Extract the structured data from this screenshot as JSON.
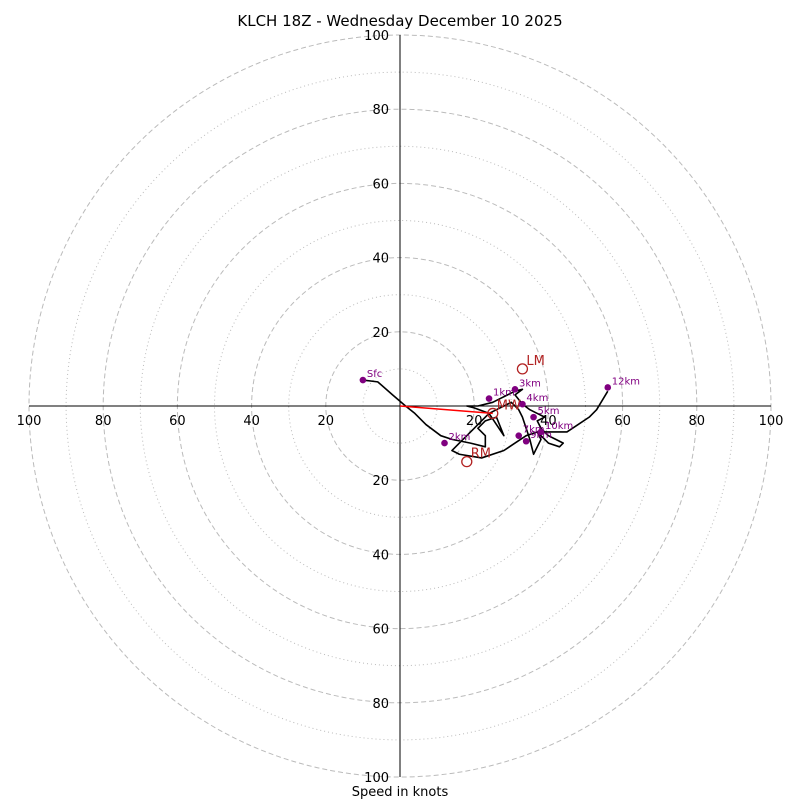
{
  "chart_data": {
    "type": "hodograph",
    "title": "KLCH 18Z - Wednesday December 10 2025",
    "xlabel": "Speed in knots",
    "max_speed": 100,
    "major_rings": [
      20,
      40,
      60,
      80,
      100
    ],
    "minor_rings": [
      10,
      30,
      50,
      70,
      90
    ],
    "tick_labels": {
      "left": [
        "100",
        "80",
        "60",
        "40",
        "20"
      ],
      "right": [
        "20",
        "40",
        "60",
        "80",
        "100"
      ],
      "top": [
        "20",
        "40",
        "60",
        "80",
        "100"
      ],
      "bottom": [
        "20",
        "40",
        "60",
        "80",
        "100"
      ]
    },
    "trace": [
      [
        -10,
        7
      ],
      [
        -6,
        6.5
      ],
      [
        -2,
        3
      ],
      [
        1.5,
        0
      ],
      [
        4,
        -2
      ],
      [
        7,
        -5
      ],
      [
        11,
        -8
      ],
      [
        14,
        -9
      ],
      [
        19,
        -10
      ],
      [
        23,
        -11
      ],
      [
        23,
        -8
      ],
      [
        21,
        -6
      ],
      [
        23,
        -4
      ],
      [
        26,
        -3
      ],
      [
        28,
        -8
      ],
      [
        26,
        -5
      ],
      [
        24,
        -2
      ],
      [
        20,
        -0.5
      ],
      [
        18,
        0
      ],
      [
        21,
        0
      ],
      [
        25,
        1
      ],
      [
        27,
        2
      ],
      [
        29,
        3
      ],
      [
        31,
        4
      ],
      [
        33,
        4.5
      ],
      [
        31,
        3
      ],
      [
        33,
        0.5
      ],
      [
        35,
        -1
      ],
      [
        37,
        -2
      ],
      [
        39,
        -3
      ],
      [
        37,
        -4
      ],
      [
        38,
        -6
      ],
      [
        40,
        -8
      ],
      [
        42,
        -9
      ],
      [
        44,
        -10
      ],
      [
        43,
        -11
      ],
      [
        40,
        -10
      ],
      [
        37,
        -7
      ],
      [
        38,
        -9
      ],
      [
        37,
        -11
      ],
      [
        36,
        -13
      ],
      [
        35,
        -9
      ],
      [
        34,
        -6
      ],
      [
        33,
        -3
      ],
      [
        32,
        -1
      ],
      [
        30,
        1
      ],
      [
        28,
        0
      ],
      [
        26,
        -1
      ],
      [
        24,
        -2
      ],
      [
        22,
        -4
      ],
      [
        20,
        -6
      ],
      [
        18,
        -8
      ],
      [
        16,
        -10
      ],
      [
        14,
        -12
      ],
      [
        16,
        -13
      ],
      [
        22,
        -14
      ],
      [
        28,
        -12
      ],
      [
        31,
        -10
      ],
      [
        34,
        -8
      ],
      [
        37,
        -7
      ],
      [
        41,
        -7
      ],
      [
        45,
        -7
      ],
      [
        48,
        -5
      ],
      [
        51,
        -3
      ],
      [
        53,
        -1
      ],
      [
        56,
        4
      ]
    ],
    "height_markers": [
      {
        "label": "Sfc",
        "u": -10,
        "v": 7
      },
      {
        "label": "1km",
        "u": 24,
        "v": 2
      },
      {
        "label": "2km",
        "u": 12,
        "v": -10
      },
      {
        "label": "3km",
        "u": 31,
        "v": 4.5
      },
      {
        "label": "4km",
        "u": 33,
        "v": 0.5
      },
      {
        "label": "5km",
        "u": 36,
        "v": -3
      },
      {
        "label": "7km",
        "u": 32,
        "v": -8
      },
      {
        "label": "9km",
        "u": 34,
        "v": -9.5
      },
      {
        "label": "10km",
        "u": 38,
        "v": -7
      },
      {
        "label": "12km",
        "u": 56,
        "v": 5
      }
    ],
    "storm_motions": [
      {
        "label": "LM",
        "u": 33,
        "v": 10
      },
      {
        "label": "RM",
        "u": 18,
        "v": -15
      },
      {
        "label": "MW",
        "u": 25,
        "v": -2
      }
    ],
    "shear_vector": {
      "from": [
        0,
        0
      ],
      "to": [
        25,
        -2
      ]
    },
    "colors": {
      "ring": "#bbbbbb",
      "trace": "#000000",
      "marker": "#800080",
      "motion": "#b22222",
      "shear": "#ff0000"
    }
  }
}
